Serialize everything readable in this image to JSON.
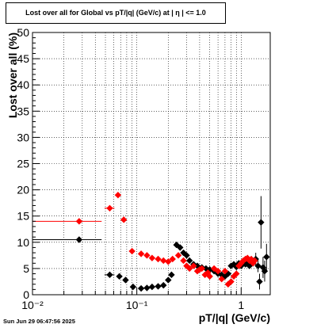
{
  "chart_data": {
    "type": "scatter",
    "title": "Lost over all for Global vs pT/|q| (GeV/c) at |   η   | <= 1.0",
    "xlabel": "pT/|q| (GeV/c)",
    "ylabel": "Lost over all (%)",
    "x_scale": "log",
    "xlim": [
      0.01,
      1.9
    ],
    "ylim": [
      0,
      50
    ],
    "x_tick_labels": [
      "10⁻²",
      "10⁻¹",
      "1"
    ],
    "y_tick_labels": [
      "0",
      "5",
      "10",
      "15",
      "20",
      "25",
      "30",
      "35",
      "40",
      "45",
      "50"
    ],
    "grid": true,
    "legend": "none",
    "colors": {
      "series_black": "#000000",
      "series_red": "#ff0000"
    },
    "series": [
      {
        "color": "#000000",
        "points": [
          [
            0.028,
            10.5,
            0.018,
            0
          ],
          [
            0.055,
            3.8,
            0.006,
            0
          ],
          [
            0.068,
            3.5,
            0.004,
            0
          ],
          [
            0.078,
            2.8,
            0.004,
            0
          ],
          [
            0.092,
            1.5,
            0.005,
            0
          ],
          [
            0.11,
            1.2,
            0,
            0
          ],
          [
            0.125,
            1.3,
            0,
            0
          ],
          [
            0.14,
            1.5,
            0,
            0
          ],
          [
            0.16,
            1.6,
            0,
            0
          ],
          [
            0.18,
            1.8,
            0,
            0
          ],
          [
            0.2,
            2.8,
            0,
            0
          ],
          [
            0.215,
            3.8,
            0,
            0
          ],
          [
            0.24,
            9.5,
            0,
            0
          ],
          [
            0.26,
            9.0,
            0,
            0
          ],
          [
            0.28,
            8.0,
            0,
            0
          ],
          [
            0.3,
            7.5,
            0,
            0
          ],
          [
            0.32,
            6.5,
            0,
            0
          ],
          [
            0.35,
            5.8,
            0,
            0
          ],
          [
            0.38,
            5.5,
            0,
            0
          ],
          [
            0.42,
            5.2,
            0,
            0
          ],
          [
            0.46,
            5.0,
            0,
            0
          ],
          [
            0.5,
            4.8,
            0,
            0
          ],
          [
            0.55,
            4.5,
            0,
            0
          ],
          [
            0.6,
            4.0,
            0,
            0
          ],
          [
            0.65,
            3.8,
            0,
            0
          ],
          [
            0.7,
            3.5,
            0,
            0
          ],
          [
            0.75,
            4.0,
            0,
            0
          ],
          [
            0.8,
            5.5,
            0,
            0
          ],
          [
            0.85,
            5.8,
            0,
            0
          ],
          [
            0.9,
            5.3,
            0,
            0
          ],
          [
            0.95,
            6.0,
            0,
            0
          ],
          [
            1.0,
            5.5,
            0,
            0
          ],
          [
            1.05,
            6.2,
            0,
            0
          ],
          [
            1.1,
            5.8,
            0,
            0
          ],
          [
            1.15,
            6.0,
            0,
            0
          ],
          [
            1.2,
            5.5,
            0,
            0
          ],
          [
            1.25,
            6.5,
            0,
            0
          ],
          [
            1.3,
            6.0,
            0,
            0
          ],
          [
            1.38,
            6.8,
            0,
            1.2
          ],
          [
            1.45,
            5.5,
            0,
            1.2
          ],
          [
            1.5,
            2.5,
            0,
            1.5
          ],
          [
            1.55,
            13.8,
            0,
            5.0
          ],
          [
            1.62,
            5.2,
            0,
            2.0
          ],
          [
            1.68,
            4.5,
            0,
            2.0
          ],
          [
            1.75,
            7.2,
            0,
            2.5
          ]
        ]
      },
      {
        "color": "#ff0000",
        "points": [
          [
            0.028,
            14.0,
            0.018,
            0
          ],
          [
            0.055,
            16.5,
            0.006,
            0
          ],
          [
            0.066,
            19.0,
            0.004,
            0
          ],
          [
            0.075,
            14.3,
            0.004,
            0
          ],
          [
            0.09,
            8.3,
            0.005,
            0
          ],
          [
            0.11,
            7.8,
            0,
            0
          ],
          [
            0.125,
            7.5,
            0,
            0
          ],
          [
            0.14,
            7.0,
            0,
            0
          ],
          [
            0.16,
            6.8,
            0,
            0
          ],
          [
            0.18,
            6.5,
            0,
            0
          ],
          [
            0.2,
            6.3,
            0,
            0
          ],
          [
            0.22,
            6.8,
            0,
            0
          ],
          [
            0.25,
            7.5,
            0,
            0
          ],
          [
            0.28,
            6.5,
            0,
            0
          ],
          [
            0.3,
            5.5,
            0,
            0
          ],
          [
            0.32,
            5.0,
            0,
            0
          ],
          [
            0.35,
            5.5,
            0,
            0
          ],
          [
            0.38,
            4.5,
            0,
            0
          ],
          [
            0.4,
            4.8,
            0,
            0
          ],
          [
            0.42,
            5.0,
            0,
            0
          ],
          [
            0.45,
            3.8,
            0,
            0
          ],
          [
            0.48,
            4.2,
            0,
            0
          ],
          [
            0.5,
            3.5,
            0,
            0
          ],
          [
            0.55,
            5.0,
            0,
            0
          ],
          [
            0.6,
            4.5,
            0,
            0
          ],
          [
            0.65,
            3.0,
            0,
            0
          ],
          [
            0.7,
            4.5,
            0,
            0
          ],
          [
            0.75,
            2.0,
            0,
            0
          ],
          [
            0.8,
            2.5,
            0,
            0
          ],
          [
            0.85,
            3.5,
            0,
            0
          ],
          [
            0.9,
            4.0,
            0,
            0
          ],
          [
            0.95,
            5.5,
            0,
            0
          ],
          [
            1.0,
            6.0,
            0,
            0
          ],
          [
            1.05,
            6.5,
            0,
            0
          ],
          [
            1.1,
            6.8,
            0,
            0
          ],
          [
            1.15,
            7.0,
            0,
            0
          ],
          [
            1.2,
            6.5,
            0,
            0
          ],
          [
            1.25,
            6.8,
            0,
            0
          ],
          [
            1.3,
            6.0,
            0,
            0
          ],
          [
            1.35,
            6.5,
            0,
            0
          ]
        ]
      }
    ]
  },
  "footer": {
    "timestamp": "Sun Jun 29 06:47:56 2025"
  }
}
